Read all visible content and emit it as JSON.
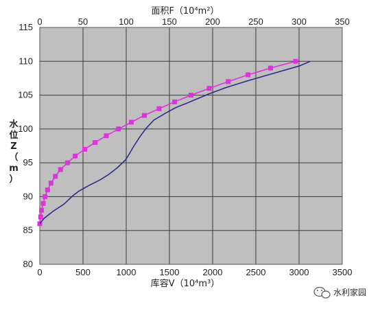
{
  "chart_data": {
    "type": "line",
    "top_xlabel": "面积F（10⁴m²）",
    "bottom_xlabel": "库容V（10⁴m³）",
    "ylabel_chars": [
      "水",
      "位",
      "Z",
      "（",
      "m",
      "）"
    ],
    "top_xlim": [
      0,
      350
    ],
    "bottom_xlim": [
      0,
      3500
    ],
    "ylim": [
      80,
      115
    ],
    "top_ticks": [
      "0",
      "50",
      "100",
      "150",
      "200",
      "250",
      "300",
      "350"
    ],
    "bottom_ticks": [
      "0",
      "500",
      "1000",
      "1500",
      "2000",
      "2500",
      "3000",
      "3500"
    ],
    "y_ticks": [
      "80",
      "85",
      "90",
      "95",
      "100",
      "105",
      "110",
      "115"
    ],
    "grid": true,
    "series": [
      {
        "axis": "top",
        "color": "#dd33dd",
        "marker": "square",
        "x": [
          0,
          1,
          2,
          4,
          6,
          9,
          13,
          18,
          24,
          32,
          41,
          52,
          64,
          77,
          91,
          106,
          121,
          138,
          156,
          175,
          196,
          218,
          241,
          267,
          296
        ],
        "y": [
          86,
          87,
          88,
          89,
          90,
          91,
          92,
          93,
          94,
          95,
          96,
          97,
          98,
          99,
          100,
          101,
          102,
          103,
          104,
          105,
          106,
          107,
          108,
          109,
          110
        ]
      },
      {
        "axis": "bottom",
        "color": "#2b2b8a",
        "marker": "none",
        "x": [
          0,
          50,
          150,
          280,
          380,
          450,
          560,
          700,
          800,
          900,
          990,
          1030,
          1080,
          1150,
          1230,
          1320,
          1450,
          1580,
          1700,
          1810,
          1960,
          2150,
          2400,
          2700,
          3000,
          3130
        ],
        "y": [
          86,
          86.8,
          87.8,
          88.9,
          90.1,
          90.8,
          91.6,
          92.5,
          93.3,
          94.3,
          95.4,
          96.2,
          97.3,
          98.7,
          100.1,
          101.3,
          102.3,
          103.2,
          103.8,
          104.4,
          105.2,
          106.1,
          107.1,
          108.2,
          109.3,
          110
        ]
      }
    ]
  },
  "watermark": {
    "icon": "wechat-icon",
    "text": "水利家园"
  }
}
